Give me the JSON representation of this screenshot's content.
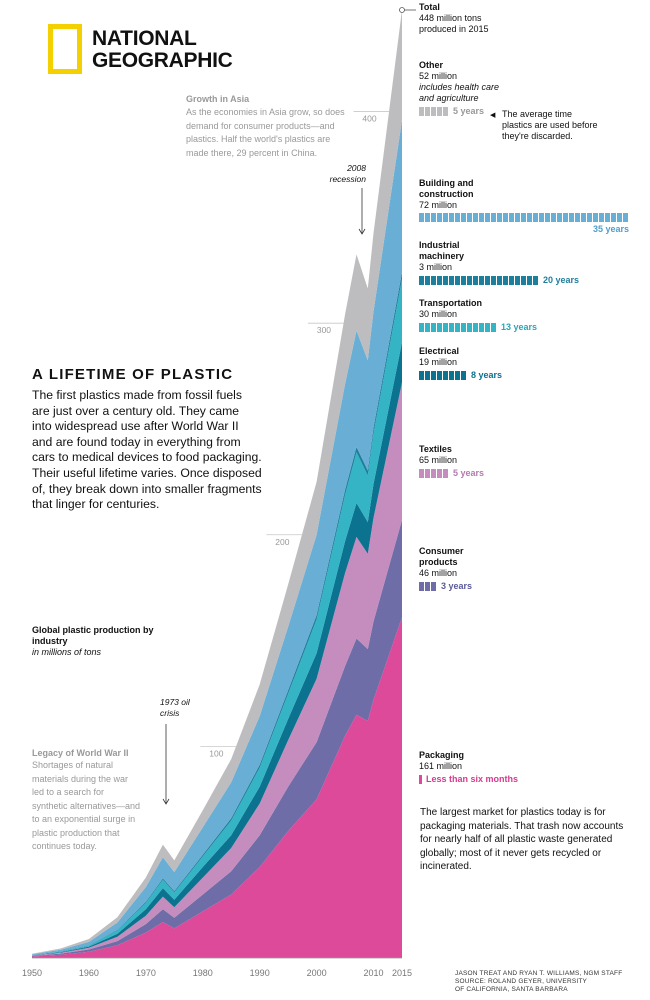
{
  "logo": {
    "line1": "NATIONAL",
    "line2": "GEOGRAPHIC",
    "color": "#f5d000"
  },
  "headline": "A LIFETIME OF PLASTIC",
  "intro": "The first plastics made from fossil fuels are just over a century old. They came into widespread use after World War II and are found today in everything from cars to medical devices to food packaging. Their useful lifetime varies. Once disposed of, they break down into smaller fragments that linger for centuries.",
  "notes": {
    "asia_title": "Growth in Asia",
    "asia_body": "As the economies in Asia grow, so does demand for consumer products—and plastics. Half the world's plastics are made there, 29 percent in China.",
    "recession": "2008 recession",
    "oil_crisis": "1973 oil crisis",
    "wwii_title": "Legacy of World War II",
    "wwii_body": "Shortages of natural materials during the war led to a search for synthetic alternatives—and to an exponential surge in plastic production that continues today."
  },
  "chart_label": {
    "title": "Global plastic production by industry",
    "unit": "in millions of tons"
  },
  "total": {
    "label": "Total",
    "value": "448 million tons produced in 2015"
  },
  "lifetime_note": "The average time plastics are used before they're discarded.",
  "packaging_text": "The largest market for plastics today is for packaging materials. That trash now accounts for nearly half of all plastic waste generated globally; most of it never gets recycled or incinerated.",
  "credits": [
    "JASON TREAT AND RYAN T. WILLIAMS, NGM STAFF",
    "SOURCE: ROLAND GEYER, UNIVERSITY",
    "OF CALIFORNIA, SANTA BARBARA"
  ],
  "industries": [
    {
      "name": "Other",
      "value": "52 million",
      "extra": "includes health care and agriculture",
      "lifetime": "5 years",
      "years": 5,
      "color": "#bdbdc0",
      "barColor": "#bdbdc0",
      "labelColor": "#999999"
    },
    {
      "name": "Building and construction",
      "value": "72 million",
      "extra": "",
      "lifetime": "35 years",
      "years": 35,
      "color": "#69aed5",
      "barColor": "#69aed5",
      "labelColor": "#4f9fcb"
    },
    {
      "name": "Industrial machinery",
      "value": "3 million",
      "extra": "",
      "lifetime": "20 years",
      "years": 20,
      "color": "#1e7f9d",
      "barColor": "#1e7f9d",
      "labelColor": "#1e7f9d"
    },
    {
      "name": "Transportation",
      "value": "30 million",
      "extra": "",
      "lifetime": "13 years",
      "years": 13,
      "color": "#34b4c4",
      "barColor": "#34b4c4",
      "labelColor": "#2aa5b6"
    },
    {
      "name": "Electrical",
      "value": "19 million",
      "extra": "",
      "lifetime": "8 years",
      "years": 8,
      "color": "#0b7290",
      "barColor": "#0b7290",
      "labelColor": "#0b7290"
    },
    {
      "name": "Textiles",
      "value": "65 million",
      "extra": "",
      "lifetime": "5 years",
      "years": 5,
      "color": "#c48dbe",
      "barColor": "#c48dbe",
      "labelColor": "#b57aae"
    },
    {
      "name": "Consumer products",
      "value": "46 million",
      "extra": "",
      "lifetime": "3 years",
      "years": 3,
      "color": "#6e6da8",
      "barColor": "#6e6da8",
      "labelColor": "#5b5a99"
    },
    {
      "name": "Packaging",
      "value": "161 million",
      "extra": "",
      "lifetime": "Less than six months",
      "years": 0.5,
      "color": "#dd4a9a",
      "barColor": "#dd4a9a",
      "labelColor": "#d8398f"
    }
  ],
  "chart_data": {
    "type": "area",
    "stacked": true,
    "title": "Global plastic production by industry",
    "ylabel": "in millions of tons",
    "x_ticks": [
      1950,
      1960,
      1970,
      1980,
      1990,
      2000,
      2010,
      2015
    ],
    "y_ticks": [
      100,
      200,
      300,
      400
    ],
    "ylim": [
      0,
      448
    ],
    "x": [
      1950,
      1955,
      1960,
      1965,
      1970,
      1973,
      1975,
      1980,
      1985,
      1990,
      1995,
      2000,
      2005,
      2007,
      2009,
      2010,
      2015
    ],
    "series_order_bottom_to_top": [
      "Packaging",
      "Consumer products",
      "Textiles",
      "Electrical",
      "Transportation",
      "Industrial machinery",
      "Building and construction",
      "Other"
    ],
    "series": [
      {
        "name": "Packaging",
        "values": [
          0.7,
          1.5,
          3,
          6,
          12,
          17,
          14,
          22,
          30,
          43,
          60,
          75,
          105,
          115,
          112,
          122,
          161
        ]
      },
      {
        "name": "Consumer products",
        "values": [
          0.3,
          0.6,
          1,
          2,
          4,
          6,
          5,
          8,
          11,
          15,
          21,
          27,
          33,
          36,
          34,
          37,
          46
        ]
      },
      {
        "name": "Textiles",
        "values": [
          0.2,
          0.4,
          0.8,
          2,
          4,
          6,
          5,
          8,
          11,
          15,
          22,
          30,
          44,
          48,
          45,
          49,
          65
        ]
      },
      {
        "name": "Electrical",
        "values": [
          0.1,
          0.3,
          0.6,
          1.5,
          3,
          4,
          3.5,
          5,
          6,
          8,
          10,
          12,
          15,
          16,
          15,
          16,
          19
        ]
      },
      {
        "name": "Transportation",
        "values": [
          0.1,
          0.2,
          0.5,
          1.5,
          3,
          4,
          3.5,
          5,
          7,
          9,
          12,
          16,
          22,
          24,
          22,
          24,
          30
        ]
      },
      {
        "name": "Industrial machinery",
        "values": [
          0.05,
          0.1,
          0.2,
          0.3,
          0.5,
          0.6,
          0.6,
          0.8,
          1,
          1.3,
          1.6,
          2,
          2.3,
          2.5,
          2.4,
          2.5,
          3
        ]
      },
      {
        "name": "Building and construction",
        "values": [
          0.3,
          0.8,
          1.5,
          3.5,
          7,
          10,
          9,
          13,
          17,
          23,
          30,
          38,
          50,
          55,
          52,
          55,
          72
        ]
      },
      {
        "name": "Other",
        "values": [
          0.3,
          0.6,
          1.4,
          2.5,
          4.5,
          6,
          5.5,
          8,
          11,
          15,
          20,
          25,
          33,
          36,
          34,
          37,
          52
        ]
      }
    ],
    "total_2015": 448,
    "annotations": [
      "1973 oil crisis",
      "2008 recession",
      "Growth in Asia",
      "Legacy of World War II"
    ]
  }
}
